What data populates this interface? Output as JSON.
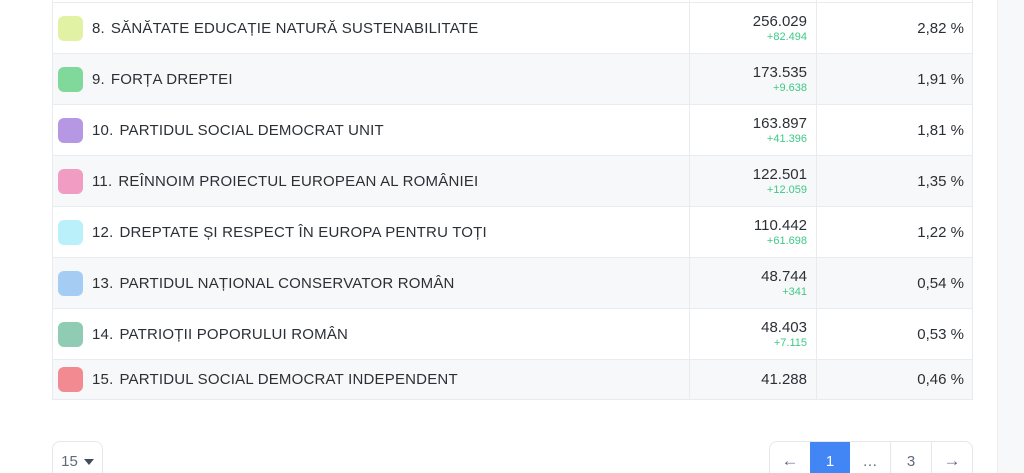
{
  "colors": {
    "active_page_bg": "#4285f4",
    "delta_green": "#3ec987"
  },
  "table": {
    "rows": [
      {
        "rank": "8.",
        "name": "SĂNĂTATE EDUCAȚIE NATURĂ SUSTENABILITATE",
        "swatch_color": "#e1f2a5",
        "votes": "256.029",
        "delta": "+82.494",
        "percent": "2,82 %"
      },
      {
        "rank": "9.",
        "name": "FORȚA DREPTEI",
        "swatch_color": "#81d89b",
        "votes": "173.535",
        "delta": "+9.638",
        "percent": "1,91 %"
      },
      {
        "rank": "10.",
        "name": "PARTIDUL SOCIAL DEMOCRAT UNIT",
        "swatch_color": "#b697e3",
        "votes": "163.897",
        "delta": "+41.396",
        "percent": "1,81 %"
      },
      {
        "rank": "11.",
        "name": "REÎNNOIM PROIECTUL EUROPEAN AL ROMÂNIEI",
        "swatch_color": "#f09cc3",
        "votes": "122.501",
        "delta": "+12.059",
        "percent": "1,35 %"
      },
      {
        "rank": "12.",
        "name": "DREPTATE ȘI RESPECT ÎN EUROPA PENTRU TOȚI",
        "swatch_color": "#baf0fa",
        "votes": "110.442",
        "delta": "+61.698",
        "percent": "1,22 %"
      },
      {
        "rank": "13.",
        "name": "PARTIDUL NAȚIONAL CONSERVATOR ROMÂN",
        "swatch_color": "#a5cdf4",
        "votes": "48.744",
        "delta": "+341",
        "percent": "0,54 %"
      },
      {
        "rank": "14.",
        "name": "PATRIOȚII POPORULUI ROMÂN",
        "swatch_color": "#90cbb4",
        "votes": "48.403",
        "delta": "+7.115",
        "percent": "0,53 %"
      },
      {
        "rank": "15.",
        "name": "PARTIDUL SOCIAL DEMOCRAT INDEPENDENT",
        "swatch_color": "#f18b91",
        "votes": "41.288",
        "delta": "",
        "percent": "0,46 %"
      }
    ]
  },
  "page_size_selector": {
    "value": "15"
  },
  "pagination": {
    "prev_label": "←",
    "pages": [
      "1",
      "…",
      "3"
    ],
    "active_page": "1",
    "next_label": "→"
  }
}
